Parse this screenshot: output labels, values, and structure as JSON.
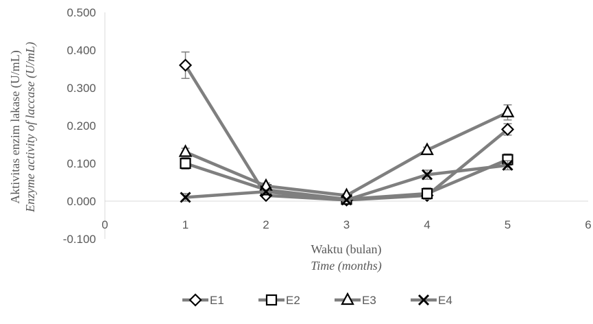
{
  "chart_data": {
    "type": "line",
    "x": [
      1,
      2,
      3,
      4,
      5
    ],
    "xlim": [
      0,
      6
    ],
    "ylim": [
      -0.1,
      0.5
    ],
    "x_ticks": [
      "0",
      "1",
      "2",
      "3",
      "4",
      "5",
      "6"
    ],
    "y_ticks": [
      "-0.100",
      "0.000",
      "0.100",
      "0.200",
      "0.300",
      "0.400",
      "0.500"
    ],
    "xlabel": "Waktu (bulan)",
    "xlabel_sub": "Time (months)",
    "ylabel": "Aktivitas enzim  lakase (U/mL)",
    "ylabel_sub": "Enzyme activity of laccase (U/mL)",
    "legend_position": "bottom",
    "line_color": "#7f7f7f",
    "marker_color": "#000000",
    "series": [
      {
        "name": "E1",
        "marker": "diamond",
        "values": [
          0.36,
          0.015,
          0.003,
          0.015,
          0.19
        ],
        "errors": [
          0.035,
          0.005,
          0.003,
          0.005,
          0.015
        ]
      },
      {
        "name": "E2",
        "marker": "square",
        "values": [
          0.1,
          0.03,
          0.005,
          0.02,
          0.11
        ],
        "errors": [
          0.015,
          0.005,
          0.003,
          0.015,
          0.015
        ]
      },
      {
        "name": "E3",
        "marker": "triangle",
        "values": [
          0.13,
          0.04,
          0.015,
          0.135,
          0.235
        ],
        "errors": [
          0.01,
          0.008,
          0.005,
          0.008,
          0.02
        ]
      },
      {
        "name": "E4",
        "marker": "x",
        "values": [
          0.01,
          0.025,
          0.003,
          0.07,
          0.095
        ],
        "errors": [
          0.01,
          0.005,
          0.003,
          0.012,
          0.012
        ]
      }
    ]
  }
}
